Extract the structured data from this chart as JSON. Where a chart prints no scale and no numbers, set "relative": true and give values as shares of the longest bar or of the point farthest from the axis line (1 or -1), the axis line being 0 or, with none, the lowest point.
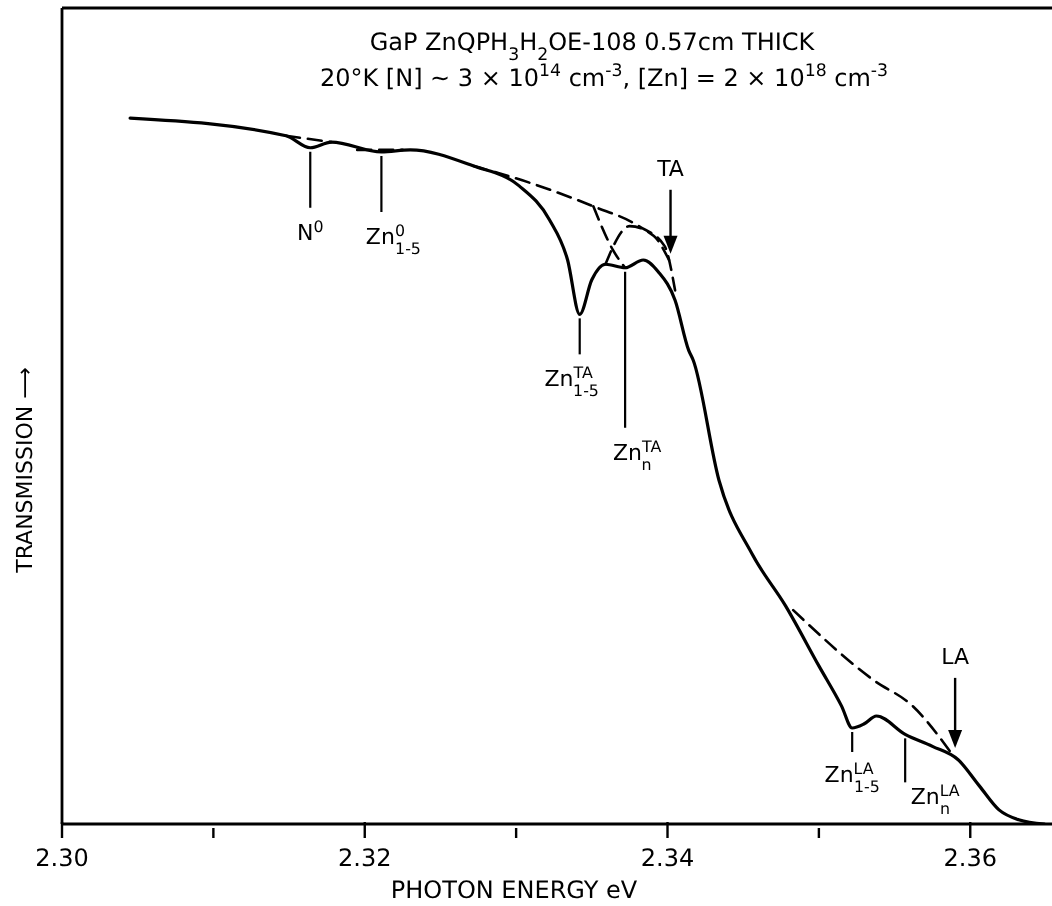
{
  "chart_data": {
    "type": "line",
    "relative": true,
    "title": "GaP ZnQPH$_{3}$H$_{2}$OE-108    0.57cm THICK",
    "subtitle": "20°K [N] ~ 3 × 10$^{14}$ cm$^{-3}$, [Zn] = 2 × 10$^{18}$ cm$^{-3}$",
    "xlabel": "PHOTON ENERGY eV",
    "ylabel": "TRANSMISSION ⟶",
    "xlim": [
      2.3,
      2.3654
    ],
    "xticks": [
      {
        "value": 2.3,
        "label": "2.30"
      },
      {
        "value": 2.31,
        "label": null
      },
      {
        "value": 2.32,
        "label": "2.32"
      },
      {
        "value": 2.33,
        "label": null
      },
      {
        "value": 2.34,
        "label": "2.34"
      },
      {
        "value": 2.35,
        "label": null
      },
      {
        "value": 2.36,
        "label": "2.36"
      }
    ],
    "series": [
      {
        "color": "#000000",
        "line_style": "solid",
        "x": [
          2.3045,
          2.3148,
          2.3164,
          2.3178,
          2.3211,
          2.323,
          2.3272,
          2.3302,
          2.3322,
          2.3334,
          2.3342,
          2.335,
          2.3359,
          2.3372,
          2.3384,
          2.3394,
          2.3405,
          2.3414,
          2.3417,
          2.3434,
          2.3456,
          2.3478,
          2.35,
          2.3515,
          2.3522,
          2.353,
          2.3538,
          2.3557,
          2.3575,
          2.3592,
          2.3606,
          2.3619,
          2.3632,
          2.3649
        ],
        "values": [
          1.0,
          0.975,
          0.958,
          0.966,
          0.952,
          0.955,
          0.932,
          0.904,
          0.856,
          0.799,
          0.722,
          0.771,
          0.793,
          0.788,
          0.799,
          0.782,
          0.742,
          0.671,
          0.657,
          0.487,
          0.382,
          0.309,
          0.224,
          0.167,
          0.136,
          0.142,
          0.153,
          0.127,
          0.11,
          0.091,
          0.054,
          0.02,
          0.006,
          0.0
        ]
      },
      {
        "color": "#000000",
        "line_style": "dashed",
        "x": [
          2.3272,
          2.3311,
          2.3351,
          2.3381,
          2.3398,
          2.3405
        ],
        "values": [
          0.932,
          0.907,
          0.875,
          0.847,
          0.819,
          0.756
        ]
      },
      {
        "color": "#000000",
        "line_style": "dashed",
        "x": [
          2.3351,
          2.3364,
          2.3372
        ],
        "values": [
          0.875,
          0.813,
          0.788
        ]
      },
      {
        "color": "#000000",
        "line_style": "dashed",
        "x": [
          2.3359,
          2.3375,
          2.3391,
          2.3401
        ],
        "values": [
          0.793,
          0.847,
          0.833,
          0.799
        ]
      },
      {
        "color": "#000000",
        "line_style": "dashed",
        "x": [
          2.3483,
          2.3536,
          2.3562,
          2.3588
        ],
        "values": [
          0.303,
          0.204,
          0.167,
          0.099
        ]
      },
      {
        "color": "#000000",
        "line_style": "dashed",
        "x": [
          2.3148,
          2.3178
        ],
        "values": [
          0.975,
          0.966
        ]
      },
      {
        "color": "#000000",
        "line_style": "dashed",
        "x": [
          2.3195,
          2.3225
        ],
        "values": [
          0.955,
          0.955
        ]
      }
    ],
    "annotations": [
      {
        "text": "N$^{0}$",
        "x": 2.3164,
        "y": 0.958
      },
      {
        "text": "Zn$^{0}$$_{1-5}$",
        "x": 2.3211,
        "y": 0.952
      },
      {
        "text": "Zn$^{TA}$$_{1-5}$",
        "x": 2.3342,
        "y": 0.722
      },
      {
        "text": "Zn$^{TA}$$_{n}$",
        "x": 2.3372,
        "y": 0.788
      },
      {
        "text": "TA",
        "x": 2.3402,
        "y": 0.805
      },
      {
        "text": "LA",
        "x": 2.359,
        "y": 0.105
      },
      {
        "text": "Zn$^{LA}$$_{1-5}$",
        "x": 2.3522,
        "y": 0.136
      },
      {
        "text": "Zn$^{LA}$$_{n}$",
        "x": 2.3557,
        "y": 0.127
      }
    ]
  }
}
